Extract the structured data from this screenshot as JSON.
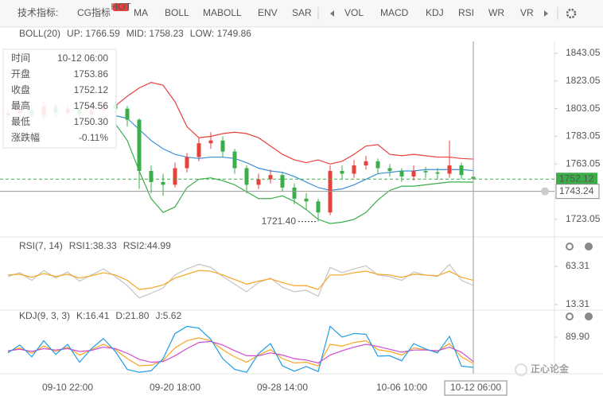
{
  "toolbar": {
    "title": "技术指标:",
    "items": [
      {
        "label": "CG指标",
        "badge": "HOT"
      },
      {
        "label": "MA"
      },
      {
        "label": "BOLL",
        "active": true
      },
      {
        "label": "MABOLL"
      },
      {
        "label": "ENV"
      },
      {
        "label": "SAR"
      },
      {
        "label": "VOL"
      },
      {
        "label": "MACD"
      },
      {
        "label": "KDJ",
        "active": true
      },
      {
        "label": "RSI",
        "active": true
      },
      {
        "label": "WR"
      },
      {
        "label": "VR"
      }
    ]
  },
  "info_box": {
    "rows": [
      {
        "label": "时间",
        "value": "10-12 06:00",
        "color": "#333333"
      },
      {
        "label": "开盘",
        "value": "1753.86",
        "color": "#3aae49"
      },
      {
        "label": "收盘",
        "value": "1752.12",
        "color": "#3aae49"
      },
      {
        "label": "最高",
        "value": "1754.56",
        "color": "#e8413c"
      },
      {
        "label": "最低",
        "value": "1750.30",
        "color": "#3aae49"
      },
      {
        "label": "涨跌幅",
        "value": "-0.11%",
        "color": "#3aae49"
      }
    ]
  },
  "watermark": "正心论金",
  "chart_data": [
    {
      "type": "candlestick",
      "indicator_label": "BOLL(20)",
      "up_color": "#e8413c",
      "down_color": "#3aae49",
      "categories": [
        null,
        null,
        null,
        null,
        null,
        "09-10 22:00",
        null,
        null,
        null,
        null,
        null,
        null,
        null,
        null,
        "09-20 18:00",
        null,
        null,
        null,
        null,
        null,
        null,
        null,
        null,
        "09-28 14:00",
        null,
        null,
        null,
        null,
        null,
        null,
        null,
        null,
        null,
        "10-06 10:00",
        null,
        null,
        null,
        null,
        null,
        "10-12 06:00"
      ],
      "open": [
        1798,
        1800,
        1802,
        1798,
        1805,
        1800,
        1803,
        1799,
        1802,
        1806,
        1803,
        1795,
        1758,
        1750,
        1748,
        1760,
        1768,
        1778,
        1780,
        1772,
        1760,
        1748,
        1752,
        1755,
        1746,
        1738,
        1736,
        1728,
        1758,
        1756,
        1762,
        1765,
        1760,
        1758,
        1754,
        1758,
        1757,
        1756,
        1762,
        1753.86
      ],
      "close": [
        1800,
        1802,
        1798,
        1805,
        1800,
        1803,
        1799,
        1802,
        1806,
        1803,
        1795,
        1758,
        1750,
        1748,
        1760,
        1768,
        1778,
        1780,
        1772,
        1760,
        1748,
        1752,
        1755,
        1746,
        1738,
        1736,
        1728,
        1758,
        1756,
        1762,
        1765,
        1760,
        1758,
        1754,
        1758,
        1757,
        1756,
        1762,
        1755,
        1752.12
      ],
      "high": [
        1803,
        1806,
        1804,
        1808,
        1807,
        1806,
        1805,
        1805,
        1810,
        1808,
        1805,
        1796,
        1762,
        1756,
        1764,
        1771,
        1782,
        1786,
        1783,
        1774,
        1762,
        1756,
        1759,
        1757,
        1749,
        1742,
        1738,
        1762,
        1762,
        1766,
        1769,
        1767,
        1763,
        1760,
        1762,
        1761,
        1760,
        1780,
        1764,
        1754.56
      ],
      "low": [
        1795,
        1797,
        1795,
        1796,
        1797,
        1798,
        1796,
        1797,
        1800,
        1800,
        1790,
        1745,
        1742,
        1740,
        1746,
        1757,
        1765,
        1774,
        1768,
        1756,
        1742,
        1745,
        1749,
        1743,
        1734,
        1730,
        1721.4,
        1726,
        1752,
        1753,
        1759,
        1756,
        1754,
        1750,
        1751,
        1753,
        1752,
        1753,
        1752,
        1750.3
      ],
      "series": [
        {
          "name": "UP",
          "legend_label": "UP: 1766.59",
          "color": "#e8413c",
          "values": [
            null,
            null,
            null,
            null,
            null,
            null,
            null,
            null,
            null,
            1805,
            1812,
            1818,
            1822,
            1820,
            1808,
            1790,
            1782,
            1783,
            1785,
            1786,
            1785,
            1782,
            1776,
            1770,
            1766,
            1764,
            1766,
            1763,
            1765,
            1770,
            1776,
            1777,
            1770,
            1769,
            1770,
            1769,
            1768,
            1768,
            1767,
            1766.59
          ]
        },
        {
          "name": "MID",
          "legend_label": "MID: 1758.23",
          "color": "#3b8fd9",
          "values": [
            null,
            null,
            null,
            null,
            null,
            null,
            null,
            null,
            null,
            1798,
            1796,
            1788,
            1780,
            1774,
            1770,
            1768,
            1767,
            1768,
            1768,
            1767,
            1764,
            1760,
            1758,
            1757,
            1754,
            1750,
            1746,
            1744,
            1745,
            1748,
            1752,
            1756,
            1757,
            1758,
            1758,
            1759,
            1759,
            1759,
            1759,
            1758.23
          ]
        },
        {
          "name": "LOW",
          "legend_label": "LOW: 1749.86",
          "color": "#3aae49",
          "values": [
            null,
            null,
            null,
            null,
            null,
            null,
            null,
            null,
            null,
            1792,
            1780,
            1758,
            1738,
            1728,
            1732,
            1746,
            1752,
            1753,
            1751,
            1748,
            1743,
            1738,
            1738,
            1740,
            1736,
            1730,
            1723,
            1720,
            1721,
            1723,
            1728,
            1737,
            1744,
            1747,
            1747,
            1748,
            1749,
            1750,
            1750,
            1749.86
          ]
        }
      ],
      "ylim": [
        1710.29,
        1851.67
      ],
      "yticks": [
        1723.05,
        1763.05,
        1783.05,
        1803.05,
        1823.05,
        1843.05
      ],
      "annotation": {
        "value": 1721.4,
        "label": "1721.40",
        "index": 26
      },
      "crosshair": {
        "value": 1743.24,
        "index": 39
      }
    },
    {
      "type": "line",
      "indicator_label": "RSI(7, 14)",
      "ylim": [
        3.9,
        81.0
      ],
      "yticks": [
        13.31,
        63.31
      ],
      "series": [
        {
          "name": "RSI1",
          "legend_label": "RSI1:38.33",
          "color": "#c4c4c4",
          "values": [
            50,
            55,
            45,
            58,
            48,
            56,
            44,
            52,
            60,
            50,
            38,
            22,
            28,
            35,
            52,
            60,
            66,
            62,
            50,
            40,
            30,
            42,
            48,
            36,
            30,
            32,
            24,
            62,
            55,
            60,
            64,
            52,
            50,
            45,
            56,
            52,
            50,
            66,
            45,
            38.33
          ]
        },
        {
          "name": "RSI2",
          "legend_label": "RSI2:44.99",
          "color": "#f5a623",
          "values": [
            52,
            53,
            49,
            54,
            50,
            53,
            48,
            51,
            55,
            52,
            45,
            33,
            35,
            39,
            48,
            53,
            58,
            57,
            52,
            46,
            40,
            44,
            47,
            42,
            38,
            38,
            33,
            52,
            52,
            55,
            57,
            53,
            52,
            49,
            53,
            52,
            51,
            57,
            49,
            44.99
          ]
        }
      ]
    },
    {
      "type": "line",
      "indicator_label": "KDJ(9, 3, 3)",
      "ylim": [
        -12.1,
        125.4
      ],
      "yticks": [
        {
          "value": 89.9,
          "label": "89.90"
        }
      ],
      "series": [
        {
          "name": "K",
          "legend_label": "K:16.41",
          "color": "#f5a623",
          "values": [
            50,
            60,
            45,
            65,
            50,
            62,
            40,
            55,
            70,
            55,
            30,
            10,
            12,
            25,
            60,
            80,
            88,
            80,
            55,
            35,
            20,
            40,
            55,
            30,
            18,
            20,
            10,
            70,
            65,
            75,
            80,
            55,
            50,
            40,
            60,
            55,
            50,
            72,
            35,
            16.41
          ]
        },
        {
          "name": "D",
          "legend_label": "D:21.80",
          "color": "#d04cd0",
          "values": [
            52,
            56,
            50,
            58,
            54,
            58,
            50,
            53,
            62,
            58,
            45,
            28,
            20,
            22,
            38,
            58,
            75,
            78,
            68,
            52,
            38,
            38,
            46,
            40,
            30,
            26,
            18,
            40,
            52,
            62,
            70,
            64,
            56,
            48,
            54,
            54,
            52,
            62,
            48,
            21.8
          ]
        },
        {
          "name": "J",
          "legend_label": "J:5.62",
          "color": "#1e9be9",
          "values": [
            46,
            68,
            35,
            80,
            42,
            70,
            20,
            58,
            86,
            50,
            0,
            -8,
            -4,
            30,
            100,
            120,
            115,
            84,
            30,
            0,
            -8,
            44,
            72,
            10,
            -5,
            8,
            -6,
            120,
            90,
            100,
            98,
            37,
            38,
            24,
            72,
            57,
            46,
            92,
            9,
            5.62
          ]
        }
      ]
    }
  ]
}
